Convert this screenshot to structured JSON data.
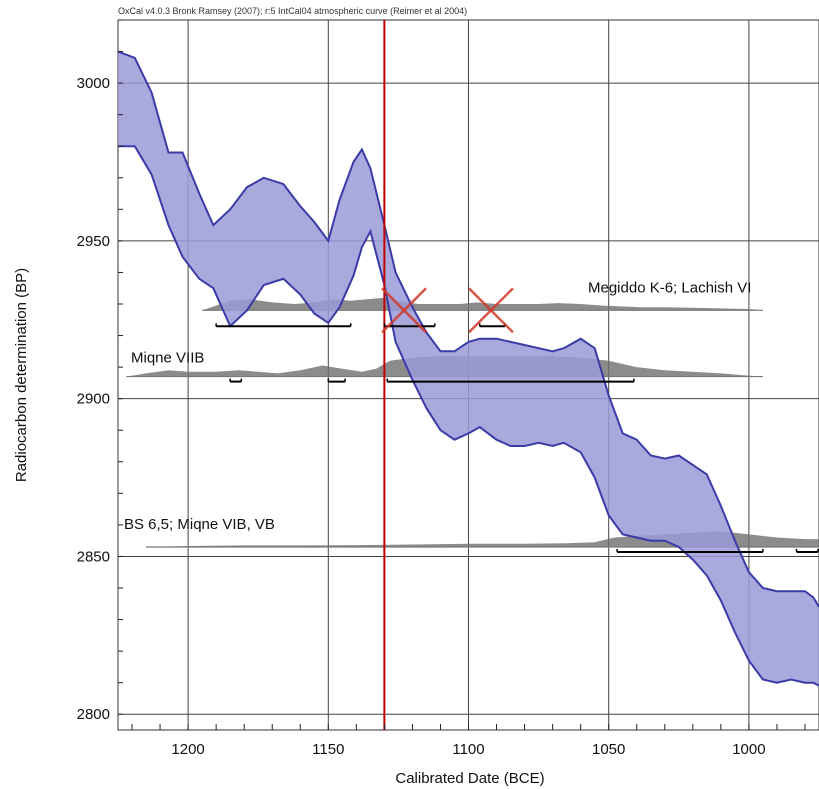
{
  "chart_data": {
    "type": "area",
    "title": "OxCal v4.0.3 Bronk Ramsey (2007); r:5 IntCal04 atmospheric curve (Reimer et al 2004)",
    "xlabel": "Calibrated Date (BCE)",
    "ylabel": "Radiocarbon determination (BP)",
    "xlim": [
      1225,
      975
    ],
    "ylim": [
      2795,
      3020
    ],
    "x_axis_reversed": true,
    "x_ticks": [
      1200,
      1150,
      1100,
      1050,
      1000
    ],
    "y_ticks": [
      2800,
      2850,
      2900,
      2950,
      3000
    ],
    "grid": true,
    "calibration_curve": {
      "color": "#3b3ba8",
      "fill": "#9a9ad8",
      "upper": [
        [
          1225,
          3010
        ],
        [
          1219,
          3008
        ],
        [
          1213,
          2997
        ],
        [
          1207,
          2978
        ],
        [
          1202,
          2978
        ],
        [
          1196,
          2965
        ],
        [
          1191,
          2955
        ],
        [
          1185,
          2960
        ],
        [
          1179,
          2967
        ],
        [
          1173,
          2970
        ],
        [
          1166,
          2968
        ],
        [
          1160,
          2961
        ],
        [
          1155,
          2956
        ],
        [
          1150,
          2950
        ],
        [
          1146,
          2963
        ],
        [
          1141,
          2975
        ],
        [
          1138,
          2979
        ],
        [
          1135,
          2973
        ],
        [
          1130,
          2955
        ],
        [
          1126,
          2940
        ],
        [
          1120,
          2929
        ],
        [
          1115,
          2921
        ],
        [
          1110,
          2915
        ],
        [
          1105,
          2915
        ],
        [
          1100,
          2918
        ],
        [
          1096,
          2919
        ],
        [
          1090,
          2919
        ],
        [
          1085,
          2918
        ],
        [
          1080,
          2917
        ],
        [
          1075,
          2916
        ],
        [
          1070,
          2915
        ],
        [
          1066,
          2916
        ],
        [
          1060,
          2919
        ],
        [
          1055,
          2916
        ],
        [
          1050,
          2901
        ],
        [
          1045,
          2889
        ],
        [
          1040,
          2887
        ],
        [
          1035,
          2882
        ],
        [
          1030,
          2881
        ],
        [
          1025,
          2882
        ],
        [
          1020,
          2879
        ],
        [
          1015,
          2876
        ],
        [
          1010,
          2866
        ],
        [
          1005,
          2855
        ],
        [
          1000,
          2845
        ],
        [
          995,
          2840
        ],
        [
          990,
          2839
        ],
        [
          985,
          2839
        ],
        [
          980,
          2839
        ],
        [
          977,
          2837
        ],
        [
          975,
          2834
        ]
      ],
      "lower": [
        [
          1225,
          2980
        ],
        [
          1219,
          2980
        ],
        [
          1213,
          2971
        ],
        [
          1207,
          2955
        ],
        [
          1202,
          2945
        ],
        [
          1196,
          2938
        ],
        [
          1191,
          2935
        ],
        [
          1185,
          2923
        ],
        [
          1179,
          2928
        ],
        [
          1173,
          2936
        ],
        [
          1166,
          2938
        ],
        [
          1160,
          2933
        ],
        [
          1155,
          2927
        ],
        [
          1150,
          2924
        ],
        [
          1146,
          2929
        ],
        [
          1141,
          2939
        ],
        [
          1138,
          2948
        ],
        [
          1135,
          2953
        ],
        [
          1130,
          2936
        ],
        [
          1126,
          2918
        ],
        [
          1120,
          2906
        ],
        [
          1115,
          2897
        ],
        [
          1110,
          2890
        ],
        [
          1105,
          2887
        ],
        [
          1100,
          2889
        ],
        [
          1096,
          2891
        ],
        [
          1090,
          2887
        ],
        [
          1085,
          2885
        ],
        [
          1080,
          2885
        ],
        [
          1075,
          2886
        ],
        [
          1070,
          2885
        ],
        [
          1066,
          2886
        ],
        [
          1060,
          2883
        ],
        [
          1055,
          2875
        ],
        [
          1050,
          2863
        ],
        [
          1045,
          2857
        ],
        [
          1040,
          2856
        ],
        [
          1035,
          2855
        ],
        [
          1030,
          2855
        ],
        [
          1025,
          2853
        ],
        [
          1020,
          2849
        ],
        [
          1015,
          2844
        ],
        [
          1010,
          2836
        ],
        [
          1005,
          2826
        ],
        [
          1000,
          2817
        ],
        [
          995,
          2811
        ],
        [
          990,
          2810
        ],
        [
          985,
          2811
        ],
        [
          980,
          2810
        ],
        [
          977,
          2810
        ],
        [
          975,
          2809
        ]
      ]
    },
    "reference_line": {
      "x": 1130,
      "color": "#c00000"
    },
    "series": [
      {
        "name": "Megiddo K-6; Lachish VI",
        "baseline": 2928,
        "distribution": [
          [
            1195,
            0
          ],
          [
            1190,
            1.5
          ],
          [
            1185,
            3
          ],
          [
            1178,
            3.5
          ],
          [
            1170,
            2.5
          ],
          [
            1162,
            2
          ],
          [
            1155,
            2.5
          ],
          [
            1148,
            3.5
          ],
          [
            1142,
            3
          ],
          [
            1136,
            3.5
          ],
          [
            1130,
            4
          ],
          [
            1125,
            3
          ],
          [
            1118,
            2
          ],
          [
            1110,
            2
          ],
          [
            1103,
            2
          ],
          [
            1097,
            2.5
          ],
          [
            1090,
            2
          ],
          [
            1082,
            2
          ],
          [
            1075,
            2
          ],
          [
            1068,
            2.3
          ],
          [
            1060,
            2
          ],
          [
            1052,
            1.5
          ],
          [
            1045,
            1.2
          ],
          [
            1038,
            1
          ],
          [
            1030,
            1
          ],
          [
            1020,
            0.8
          ],
          [
            1010,
            0.6
          ],
          [
            1000,
            0.4
          ],
          [
            995,
            0
          ]
        ],
        "ranges": [
          [
            1190,
            1142
          ],
          [
            1130,
            1112
          ],
          [
            1096,
            1087
          ]
        ]
      },
      {
        "name": "Miqne VIIB",
        "baseline": 2907,
        "distribution": [
          [
            1222,
            0
          ],
          [
            1215,
            1
          ],
          [
            1207,
            2
          ],
          [
            1200,
            1.5
          ],
          [
            1190,
            1.5
          ],
          [
            1182,
            2
          ],
          [
            1175,
            1.5
          ],
          [
            1168,
            1
          ],
          [
            1160,
            2
          ],
          [
            1152,
            3.5
          ],
          [
            1145,
            2.5
          ],
          [
            1138,
            1.5
          ],
          [
            1133,
            2.5
          ],
          [
            1128,
            5
          ],
          [
            1120,
            6
          ],
          [
            1110,
            6.5
          ],
          [
            1100,
            6.5
          ],
          [
            1090,
            6.5
          ],
          [
            1080,
            6.5
          ],
          [
            1070,
            6.5
          ],
          [
            1060,
            6
          ],
          [
            1050,
            5
          ],
          [
            1040,
            3
          ],
          [
            1030,
            2
          ],
          [
            1020,
            1.5
          ],
          [
            1010,
            1
          ],
          [
            1000,
            0.3
          ],
          [
            995,
            0
          ]
        ],
        "ranges": [
          [
            1185,
            1181
          ],
          [
            1150,
            1144
          ],
          [
            1129,
            1041
          ]
        ]
      },
      {
        "name": "BS 6,5; Miqne VIB, VB",
        "baseline": 2853,
        "distribution": [
          [
            1215,
            0
          ],
          [
            1200,
            0.3
          ],
          [
            1180,
            0.5
          ],
          [
            1160,
            0.5
          ],
          [
            1140,
            0.6
          ],
          [
            1120,
            0.8
          ],
          [
            1100,
            1
          ],
          [
            1080,
            1
          ],
          [
            1065,
            1.2
          ],
          [
            1055,
            1.5
          ],
          [
            1048,
            3
          ],
          [
            1040,
            3.5
          ],
          [
            1030,
            4
          ],
          [
            1020,
            4.5
          ],
          [
            1010,
            5
          ],
          [
            1000,
            4
          ],
          [
            990,
            3
          ],
          [
            980,
            2.5
          ],
          [
            975,
            2.5
          ]
        ],
        "ranges": [
          [
            1047,
            995
          ],
          [
            983,
            975
          ]
        ]
      }
    ],
    "rejected_markers": [
      {
        "x": 1123,
        "y": 2928
      },
      {
        "x": 1092,
        "y": 2928
      }
    ]
  }
}
